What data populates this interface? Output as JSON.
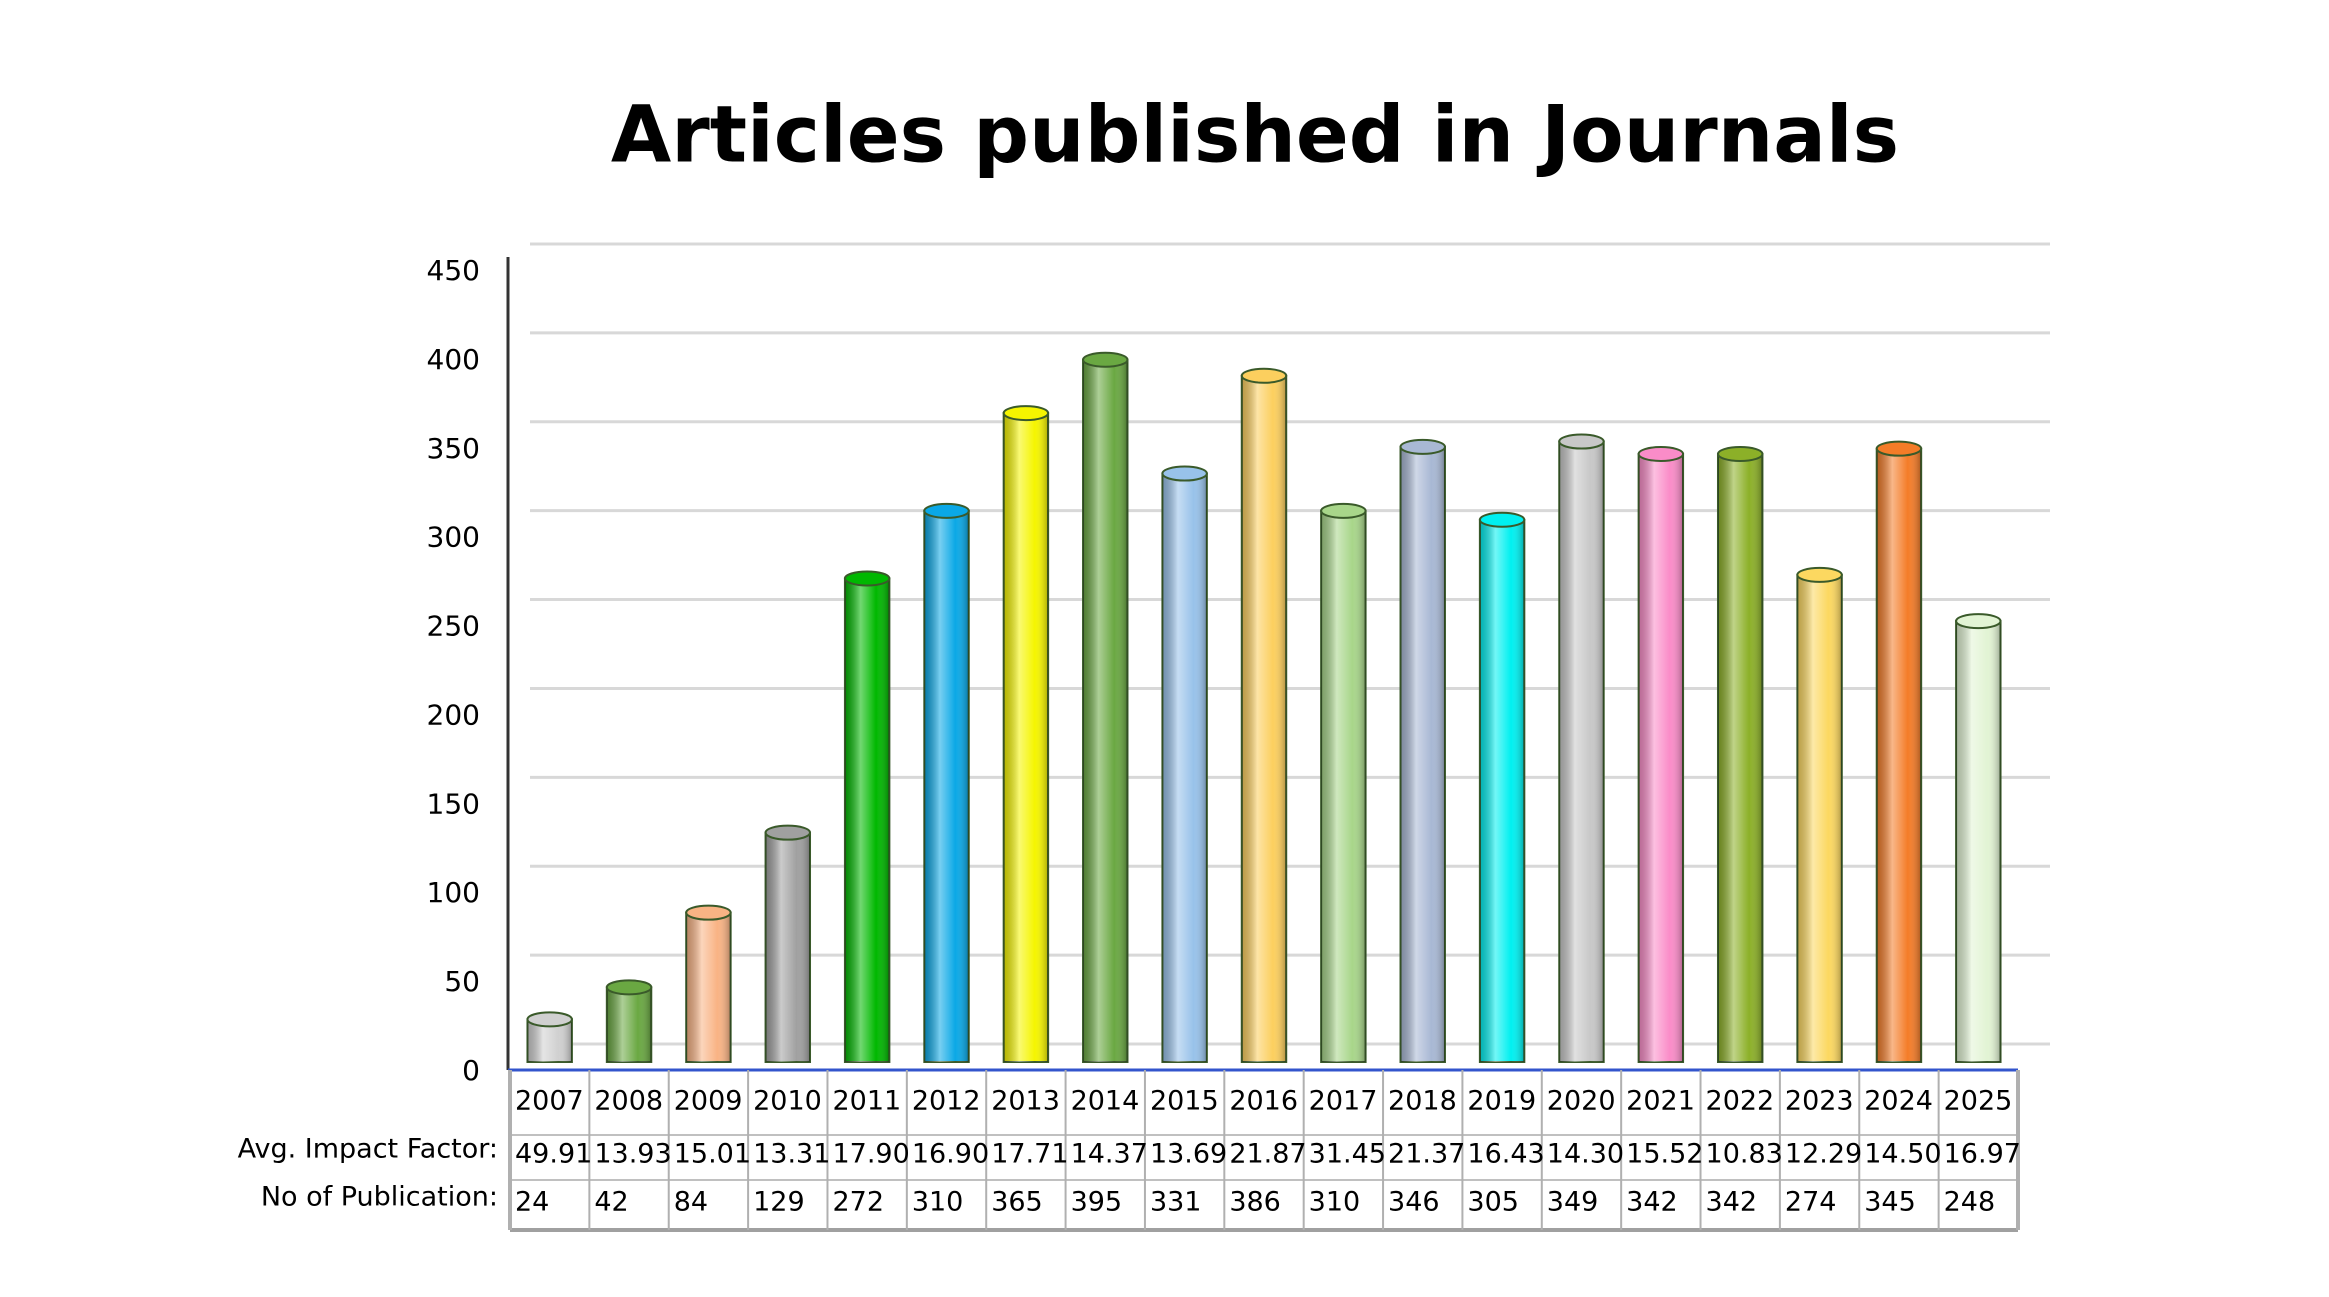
{
  "chart_data": {
    "type": "bar",
    "title": "Articles published in Journals",
    "categories": [
      "2007",
      "2008",
      "2009",
      "2010",
      "2011",
      "2012",
      "2013",
      "2014",
      "2015",
      "2016",
      "2017",
      "2018",
      "2019",
      "2020",
      "2021",
      "2022",
      "2023",
      "2024",
      "2025"
    ],
    "series": [
      {
        "name": "No of Publication:",
        "values": [
          24,
          42,
          84,
          129,
          272,
          310,
          365,
          395,
          331,
          386,
          310,
          346,
          305,
          349,
          342,
          342,
          274,
          345,
          248
        ]
      }
    ],
    "colors": [
      "#d0d0d0",
      "#6aa842",
      "#f9b384",
      "#a0a0a0",
      "#00b800",
      "#0aa8e6",
      "#f5f500",
      "#6aa842",
      "#98c2ea",
      "#fccf5e",
      "#a8d68a",
      "#a8b8d4",
      "#00f0f0",
      "#c8c8c8",
      "#fa8cc8",
      "#8cb028",
      "#fcd860",
      "#f47c28",
      "#e2f4d4"
    ],
    "impact_factor": {
      "name": "Avg. Impact Factor:",
      "values": [
        49.91,
        13.93,
        15.01,
        13.31,
        17.9,
        16.9,
        17.71,
        14.37,
        13.69,
        21.87,
        31.45,
        21.37,
        16.43,
        14.3,
        15.52,
        10.83,
        12.29,
        14.5,
        16.97
      ],
      "value_labels": [
        "49.91",
        "13.93",
        "15.01",
        "13.31",
        "17.90",
        "16.90",
        "17.71",
        "14.37",
        "13.69",
        "21.87",
        "31.45",
        "21.37",
        "16.43",
        "14.30",
        "15.52",
        "10.83",
        "12.29",
        "14.50",
        "16.97"
      ]
    },
    "ylim": [
      0,
      450
    ],
    "yticks": [
      0,
      50,
      100,
      150,
      200,
      250,
      300,
      350,
      400,
      450
    ],
    "grid": true
  }
}
